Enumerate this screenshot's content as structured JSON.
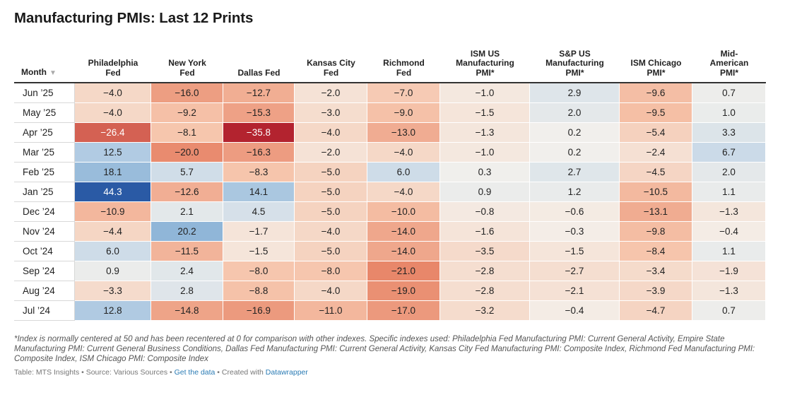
{
  "title": "Manufacturing PMIs: Last 12 Prints",
  "colors": {
    "neg_max": "#b2222e",
    "neutral": "#f4f1ec",
    "pos_max": "#2a5aa5",
    "link": "#2a7bb4"
  },
  "chart_data": {
    "type": "table",
    "columns": [
      {
        "label": "Month",
        "sort_icon": "sort-down-icon"
      },
      {
        "label": "Philadelphia\nFed"
      },
      {
        "label": "New York\nFed"
      },
      {
        "label": "Dallas Fed"
      },
      {
        "label": "Kansas City\nFed"
      },
      {
        "label": "Richmond\nFed"
      },
      {
        "label": "ISM US\nManufacturing\nPMI*"
      },
      {
        "label": "S&P US\nManufacturing\nPMI*"
      },
      {
        "label": "ISM Chicago\nPMI*"
      },
      {
        "label": "Mid-\nAmerican\nPMI*"
      }
    ],
    "rows": [
      {
        "month": "Jun ’25",
        "values": [
          "−4.0",
          "−16.0",
          "−12.7",
          "−2.0",
          "−7.0",
          "−1.0",
          "2.9",
          "−9.6",
          "0.7"
        ]
      },
      {
        "month": "May ’25",
        "values": [
          "−4.0",
          "−9.2",
          "−15.3",
          "−3.0",
          "−9.0",
          "−1.5",
          "2.0",
          "−9.5",
          "1.0"
        ]
      },
      {
        "month": "Apr ’25",
        "values": [
          "−26.4",
          "−8.1",
          "−35.8",
          "−4.0",
          "−13.0",
          "−1.3",
          "0.2",
          "−5.4",
          "3.3"
        ]
      },
      {
        "month": "Mar ’25",
        "values": [
          "12.5",
          "−20.0",
          "−16.3",
          "−2.0",
          "−4.0",
          "−1.0",
          "0.2",
          "−2.4",
          "6.7"
        ]
      },
      {
        "month": "Feb ’25",
        "values": [
          "18.1",
          "5.7",
          "−8.3",
          "−5.0",
          "6.0",
          "0.3",
          "2.7",
          "−4.5",
          "2.0"
        ]
      },
      {
        "month": "Jan ’25",
        "values": [
          "44.3",
          "−12.6",
          "14.1",
          "−5.0",
          "−4.0",
          "0.9",
          "1.2",
          "−10.5",
          "1.1"
        ]
      },
      {
        "month": "Dec ’24",
        "values": [
          "−10.9",
          "2.1",
          "4.5",
          "−5.0",
          "−10.0",
          "−0.8",
          "−0.6",
          "−13.1",
          "−1.3"
        ]
      },
      {
        "month": "Nov ’24",
        "values": [
          "−4.4",
          "20.2",
          "−1.7",
          "−4.0",
          "−14.0",
          "−1.6",
          "−0.3",
          "−9.8",
          "−0.4"
        ]
      },
      {
        "month": "Oct ’24",
        "values": [
          "6.0",
          "−11.5",
          "−1.5",
          "−5.0",
          "−14.0",
          "−3.5",
          "−1.5",
          "−8.4",
          "1.1"
        ]
      },
      {
        "month": "Sep ’24",
        "values": [
          "0.9",
          "2.4",
          "−8.0",
          "−8.0",
          "−21.0",
          "−2.8",
          "−2.7",
          "−3.4",
          "−1.9"
        ]
      },
      {
        "month": "Aug ’24",
        "values": [
          "−3.3",
          "2.8",
          "−8.8",
          "−4.0",
          "−19.0",
          "−2.8",
          "−2.1",
          "−3.9",
          "−1.3"
        ]
      },
      {
        "month": "Jul ’24",
        "values": [
          "12.8",
          "−14.8",
          "−16.9",
          "−11.0",
          "−17.0",
          "−3.2",
          "−0.4",
          "−4.7",
          "0.7"
        ]
      }
    ]
  },
  "footnote": "*Index is normally centered at 50 and has been recentered at 0 for comparison with other indexes. Specific indexes used: Philadelphia Fed Manufacturing PMI: Current General Activity, Empire State Manufacturing PMI: Current General Business Conditions, Dallas Fed Manufacturing PMI: Current General Activity, Kansas City Fed Manufacturing PMI: Composite Index, Richmond Fed Manufacturing PMI: Composite Index, ISM Chicago PMI: Composite Index",
  "source": {
    "prefix": "Table: MTS Insights • Source: Various Sources • ",
    "get_data": "Get the data",
    "mid": " • Created with ",
    "datawrapper": "Datawrapper"
  }
}
